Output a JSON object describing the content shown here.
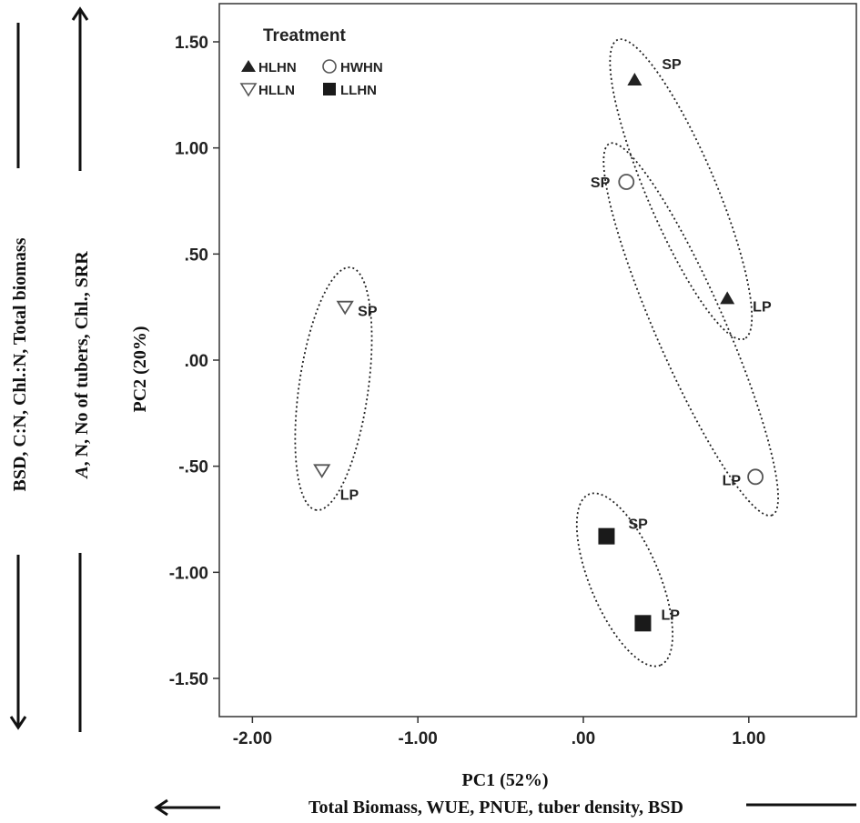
{
  "chart_data": {
    "type": "scatter",
    "xlabel": "PC1 (52%)",
    "ylabel": "PC2 (20%)",
    "xlim": [
      -2.2,
      1.65
    ],
    "ylim": [
      -1.68,
      1.68
    ],
    "x_ticks": [
      -2.0,
      -1.0,
      0.0,
      1.0
    ],
    "x_tick_labels": [
      "-2.00",
      "-1.00",
      ".00",
      "1.00"
    ],
    "y_ticks": [
      1.5,
      1.0,
      0.5,
      0.0,
      -0.5,
      -1.0,
      -1.5
    ],
    "y_tick_labels": [
      "1.50",
      "1.00",
      ".50",
      ".00",
      "-.50",
      "-1.00",
      "-1.50"
    ],
    "grid": false,
    "legend": {
      "title": "Treatment",
      "placement": "top-left",
      "entries": [
        "HLHN",
        "HWHN",
        "HLLN",
        "LLHN"
      ]
    },
    "series": [
      {
        "name": "HLHN",
        "marker": "triangle-up-filled",
        "color": "#222222",
        "points": [
          {
            "x": 0.31,
            "y": 1.32,
            "label": "SP"
          },
          {
            "x": 0.87,
            "y": 0.29,
            "label": "LP"
          }
        ]
      },
      {
        "name": "HWHN",
        "marker": "circle-open",
        "color": "#555555",
        "points": [
          {
            "x": 0.26,
            "y": 0.84,
            "label": "SP"
          },
          {
            "x": 1.04,
            "y": -0.55,
            "label": "LP"
          }
        ]
      },
      {
        "name": "HLLN",
        "marker": "triangle-down-open",
        "color": "#555555",
        "points": [
          {
            "x": -1.44,
            "y": 0.25,
            "label": "SP"
          },
          {
            "x": -1.58,
            "y": -0.52,
            "label": "LP"
          }
        ]
      },
      {
        "name": "LLHN",
        "marker": "square-filled",
        "color": "#1a1a1a",
        "points": [
          {
            "x": 0.14,
            "y": -0.83,
            "label": "SP"
          },
          {
            "x": 0.36,
            "y": -1.24,
            "label": "LP"
          }
        ]
      }
    ],
    "x_direction_text": "Total Biomass, WUE, PNUE, tuber density, BSD",
    "y_direction_text_outer": "BSD, C:N, Chl.:N,  Total biomass",
    "y_direction_text_inner": "A, N, No of tubers, Chl., SRR"
  }
}
